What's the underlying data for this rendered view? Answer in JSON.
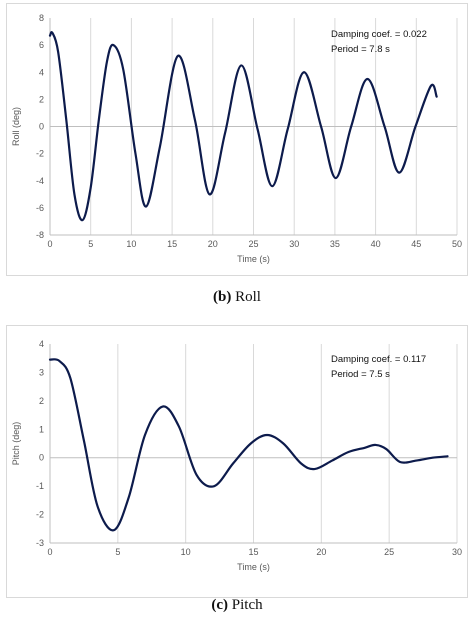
{
  "chart_data": [
    {
      "id": "roll",
      "type": "line",
      "caption_label": "(b)",
      "caption_text": "Roll",
      "xlabel": "Time (s)",
      "ylabel": "Roll (deg)",
      "xlim": [
        0,
        50
      ],
      "ylim": [
        -8,
        8
      ],
      "xticks": [
        0,
        5,
        10,
        15,
        20,
        25,
        30,
        35,
        40,
        45,
        50
      ],
      "yticks": [
        -8,
        -6,
        -4,
        -2,
        0,
        2,
        4,
        6,
        8
      ],
      "grid": "vertical",
      "annotations": [
        "Damping coef. = 0.022",
        "Period = 7.8 s"
      ],
      "color": "#0d1b4c",
      "series": [
        {
          "x": [
            0,
            0.3,
            1.0,
            2.0,
            3.0,
            4.0,
            5.0,
            6.0,
            7.0,
            7.8,
            9.0,
            10.5,
            11.8,
            13.5,
            15.7,
            17.8,
            19.6,
            21.5,
            23.5,
            25.5,
            27.3,
            29.2,
            31.2,
            33.3,
            35.1,
            37.0,
            39.0,
            41.1,
            42.9,
            44.9,
            46.8,
            47.5
          ],
          "y": [
            6.7,
            6.9,
            5.5,
            0.5,
            -5.0,
            -6.9,
            -4.5,
            0.5,
            4.8,
            6.0,
            4.2,
            -2.0,
            -5.9,
            -1.5,
            5.2,
            0.5,
            -5.0,
            -0.5,
            4.5,
            -0.2,
            -4.4,
            -0.2,
            4.0,
            0.0,
            -3.8,
            0.0,
            3.5,
            0.0,
            -3.4,
            0.0,
            3.0,
            2.2
          ]
        }
      ]
    },
    {
      "id": "pitch",
      "type": "line",
      "caption_label": "(c)",
      "caption_text": "Pitch",
      "xlabel": "Time (s)",
      "ylabel": "Pitch (deg)",
      "xlim": [
        0,
        30
      ],
      "ylim": [
        -3,
        4
      ],
      "xticks": [
        0,
        5,
        10,
        15,
        20,
        25,
        30
      ],
      "yticks": [
        -3,
        -2,
        -1,
        0,
        1,
        2,
        3,
        4
      ],
      "grid": "vertical",
      "annotations": [
        "Damping coef. = 0.117",
        "Period = 7.5 s"
      ],
      "color": "#0d1b4c",
      "series": [
        {
          "x": [
            0,
            0.7,
            1.5,
            2.5,
            3.5,
            4.7,
            5.8,
            7.0,
            8.3,
            9.5,
            10.8,
            12.1,
            13.5,
            14.8,
            16.0,
            17.2,
            18.5,
            19.5,
            20.8,
            22.0,
            23.2,
            24.0,
            24.8,
            25.8,
            27.0,
            28.2,
            29.3
          ],
          "y": [
            3.45,
            3.4,
            2.8,
            0.6,
            -1.7,
            -2.55,
            -1.4,
            0.8,
            1.8,
            1.1,
            -0.6,
            -1.0,
            -0.2,
            0.5,
            0.8,
            0.5,
            -0.2,
            -0.4,
            -0.1,
            0.2,
            0.35,
            0.45,
            0.3,
            -0.15,
            -0.1,
            0.0,
            0.05
          ]
        }
      ]
    }
  ]
}
